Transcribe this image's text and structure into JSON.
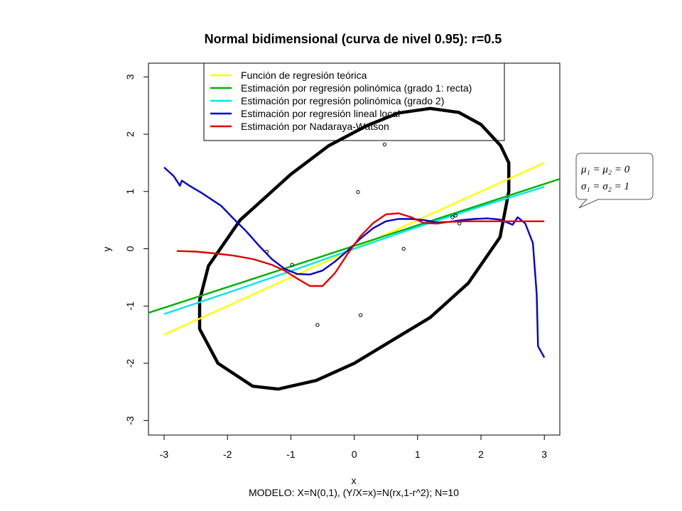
{
  "chart_data": {
    "type": "line",
    "title": "Normal bidimensional (curva de nivel 0.95): r=0.5",
    "xlabel": "x",
    "ylabel": "y",
    "subtitle": "MODELO: X=N(0,1), (Y/X=x)=N(rx,1-r^2); N=10",
    "xlim": [
      -3.25,
      3.25
    ],
    "ylim": [
      -3.25,
      3.25
    ],
    "xticks": [
      -3,
      -2,
      -1,
      0,
      1,
      2,
      3
    ],
    "yticks": [
      -3,
      -2,
      -1,
      0,
      1,
      2,
      3
    ],
    "xtick_labels": [
      "-3",
      "-2",
      "-1",
      "0",
      "1",
      "2",
      "3"
    ],
    "ytick_labels": [
      "-3",
      "-2",
      "-1",
      "0",
      "1",
      "2",
      "3"
    ],
    "grid": false,
    "legend_position": "top",
    "ellipse": {
      "level": 0.95,
      "r": 0.5,
      "color": "#000000",
      "radius_sq": 5.991,
      "points": [
        [
          2.44,
          1.0
        ],
        [
          2.44,
          1.5
        ],
        [
          2.31,
          1.8
        ],
        [
          2.0,
          2.17
        ],
        [
          1.65,
          2.38
        ],
        [
          1.2,
          2.45
        ],
        [
          0.7,
          2.37
        ],
        [
          0.2,
          2.15
        ],
        [
          -0.4,
          1.8
        ],
        [
          -1.0,
          1.3
        ],
        [
          -1.8,
          0.5
        ],
        [
          -2.3,
          -0.3
        ],
        [
          -2.44,
          -0.9
        ],
        [
          -2.44,
          -1.4
        ],
        [
          -2.15,
          -2.0
        ],
        [
          -1.6,
          -2.4
        ],
        [
          -1.2,
          -2.45
        ],
        [
          -0.6,
          -2.3
        ],
        [
          0.0,
          -2.0
        ],
        [
          0.6,
          -1.6
        ],
        [
          1.2,
          -1.2
        ],
        [
          1.8,
          -0.6
        ],
        [
          2.3,
          0.2
        ],
        [
          2.44,
          1.0
        ]
      ]
    },
    "points": {
      "x": [
        -1.38,
        -0.98,
        -0.58,
        0.06,
        0.1,
        0.48,
        0.78,
        1.6,
        1.66,
        1.55
      ],
      "y": [
        -0.05,
        -0.28,
        -1.33,
        0.99,
        -1.16,
        1.82,
        0.0,
        0.58,
        0.44,
        0.55
      ]
    },
    "series": [
      {
        "name": "Función de regresión teórica",
        "color": "#ffff00",
        "x": [
          -3,
          3
        ],
        "y": [
          -1.5,
          1.5
        ]
      },
      {
        "name": "Estimación por regresión polinómica (grado 1: recta)",
        "color": "#00b000",
        "x": [
          -3.25,
          3.25
        ],
        "y": [
          -1.12,
          1.22
        ]
      },
      {
        "name": "Estimación por regresión polinómica (grado 2)",
        "color": "#00e5ee",
        "x": [
          -3,
          -2,
          -1,
          0,
          1,
          2,
          3
        ],
        "y": [
          -1.14,
          -0.77,
          -0.39,
          0.0,
          0.38,
          0.74,
          1.08
        ]
      },
      {
        "name": "Estimación por regresión lineal local",
        "color": "#0000cc",
        "x": [
          -3.0,
          -2.85,
          -2.75,
          -2.72,
          -2.6,
          -2.4,
          -2.1,
          -1.9,
          -1.7,
          -1.5,
          -1.3,
          -1.1,
          -0.9,
          -0.7,
          -0.5,
          -0.3,
          -0.1,
          0.1,
          0.3,
          0.5,
          0.7,
          0.9,
          1.1,
          1.3,
          1.5,
          1.7,
          1.9,
          2.1,
          2.3,
          2.5,
          2.58,
          2.7,
          2.82,
          2.88,
          2.9,
          3.0
        ],
        "y": [
          1.42,
          1.27,
          1.1,
          1.19,
          1.1,
          0.97,
          0.75,
          0.52,
          0.3,
          0.05,
          -0.18,
          -0.35,
          -0.44,
          -0.45,
          -0.38,
          -0.22,
          -0.03,
          0.18,
          0.36,
          0.48,
          0.52,
          0.52,
          0.5,
          0.46,
          0.47,
          0.5,
          0.52,
          0.53,
          0.51,
          0.42,
          0.55,
          0.44,
          0.1,
          -0.8,
          -1.7,
          -1.9
        ]
      },
      {
        "name": "Estimación por Nadaraya-Watson",
        "color": "#e00000",
        "x": [
          -2.8,
          -2.5,
          -2.2,
          -1.9,
          -1.6,
          -1.3,
          -1.1,
          -0.9,
          -0.7,
          -0.5,
          -0.3,
          -0.1,
          0.1,
          0.3,
          0.5,
          0.7,
          0.9,
          1.1,
          1.3,
          1.5,
          1.8,
          2.1,
          2.4,
          2.7,
          3.0
        ],
        "y": [
          -0.04,
          -0.05,
          -0.08,
          -0.12,
          -0.18,
          -0.28,
          -0.38,
          -0.52,
          -0.65,
          -0.65,
          -0.42,
          -0.08,
          0.22,
          0.45,
          0.6,
          0.62,
          0.55,
          0.45,
          0.44,
          0.47,
          0.48,
          0.48,
          0.48,
          0.48,
          0.48
        ]
      }
    ],
    "annotation": {
      "line1": "μ₁ = μ₂ = 0",
      "line2": "σ₁ = σ₂ = 1"
    }
  }
}
